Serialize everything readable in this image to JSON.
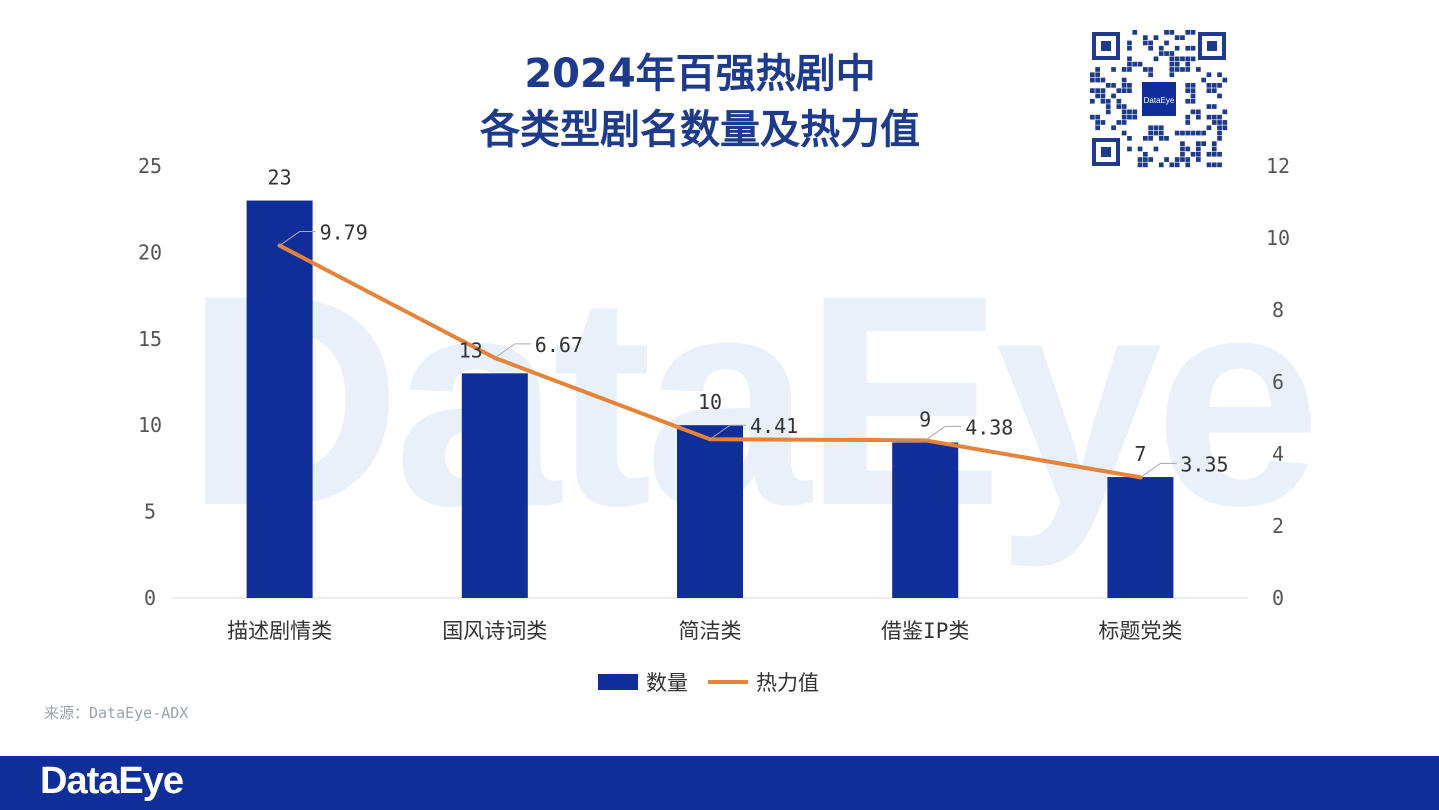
{
  "title_line1": "2024年百强热剧中",
  "title_line2": "各类型剧名数量及热力值",
  "watermark_text": "DataEye",
  "qr_center_text": "DataEye",
  "source_text": "来源：DataEye-ADX",
  "brand_text": "DataEye",
  "colors": {
    "bar": "#0f2e9a",
    "line": "#e6833a",
    "title": "#1e3a8a"
  },
  "chart_data": {
    "type": "bar",
    "categories": [
      "描述剧情类",
      "国风诗词类",
      "简洁类",
      "借鉴IP类",
      "标题党类"
    ],
    "series": [
      {
        "name": "数量",
        "type": "bar",
        "axis": "left",
        "values": [
          23,
          13,
          10,
          9,
          7
        ]
      },
      {
        "name": "热力值",
        "type": "line",
        "axis": "right",
        "values": [
          9.79,
          6.67,
          4.41,
          4.38,
          3.35
        ]
      }
    ],
    "y_left": {
      "min": 0,
      "max": 25,
      "ticks": [
        0,
        5,
        10,
        15,
        20,
        25
      ]
    },
    "y_right": {
      "min": 0,
      "max": 12,
      "ticks": [
        0,
        2,
        4,
        6,
        8,
        10,
        12
      ]
    },
    "legend_position": "bottom",
    "grid": false
  }
}
